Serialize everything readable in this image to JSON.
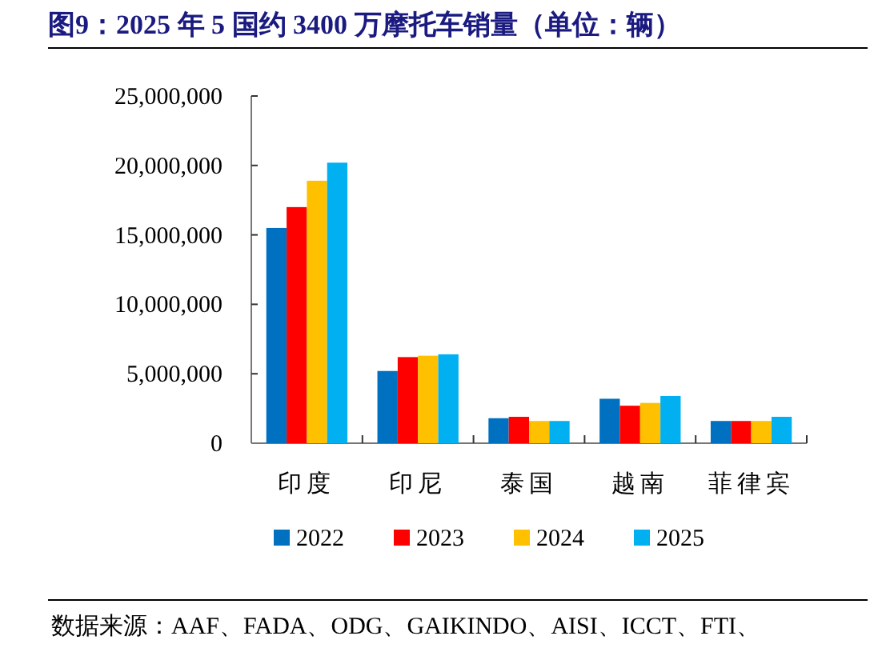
{
  "chart_data": {
    "type": "bar",
    "title": "图9：2025 年 5 国约 3400 万摩托车销量（单位：辆）",
    "categories": [
      "印度",
      "印尼",
      "泰国",
      "越南",
      "菲律宾"
    ],
    "series": [
      {
        "name": "2022",
        "color": "#0070c0",
        "values": [
          15500000,
          5200000,
          1800000,
          3200000,
          1600000
        ]
      },
      {
        "name": "2023",
        "color": "#ff0000",
        "values": [
          17000000,
          6200000,
          1900000,
          2700000,
          1600000
        ]
      },
      {
        "name": "2024",
        "color": "#ffc000",
        "values": [
          18900000,
          6300000,
          1600000,
          2900000,
          1600000
        ]
      },
      {
        "name": "2025",
        "color": "#00b0f0",
        "values": [
          20200000,
          6400000,
          1600000,
          3400000,
          1900000
        ]
      }
    ],
    "ylim": [
      0,
      25000000
    ],
    "yticks": [
      0,
      {
        "value": 5000000,
        "label": "5,000,000"
      },
      {
        "value": 10000000,
        "label": "10,000,000"
      },
      {
        "value": 15000000,
        "label": "15,000,000"
      },
      {
        "value": 20000000,
        "label": "20,000,000"
      },
      {
        "value": 25000000,
        "label": "25,000,000"
      }
    ],
    "legend": "bottom",
    "annotations": [
      "数据来源：AAF、FADA、ODG、GAIKINDO、AISI、ICCT、FTI、"
    ]
  }
}
